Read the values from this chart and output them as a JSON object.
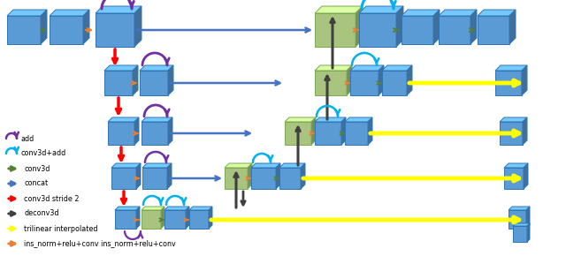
{
  "bg_color": "#ffffff",
  "blue": "#5b9bd5",
  "blue_dark": "#2e75b6",
  "blue_light": "#9dc3e6",
  "green": "#a9c47f",
  "green_dark": "#7aaa52",
  "arrow_blue": "#4472c4",
  "arrow_red": "#ff0000",
  "arrow_green": "#548235",
  "arrow_gray": "#404040",
  "arrow_yellow": "#ffff00",
  "arrow_orange": "#ed7d31",
  "arrow_dashed_blue": "#4472c4",
  "arc_purple": "#7030a0",
  "arc_cyan": "#00b0f0",
  "legend_items": [
    {
      "label": "add",
      "color": "#7030a0",
      "type": "arc"
    },
    {
      "label": "conv3d+add",
      "color": "#00b0f0",
      "type": "arc"
    },
    {
      "label": "conv3d",
      "color": "#548235",
      "type": "arrow"
    },
    {
      "label": "concat",
      "color": "#4472c4",
      "type": "arrow"
    },
    {
      "label": "conv3d stride 2",
      "color": "#ff0000",
      "type": "arrow"
    },
    {
      "label": "deconv3d",
      "color": "#404040",
      "type": "arrow"
    },
    {
      "label": "trilinear interpolated",
      "color": "#ffff00",
      "type": "arrow"
    },
    {
      "label": "ins_norm+relu+conv ins_norm+relu+conv",
      "color": "#ed7d31",
      "type": "arrow"
    }
  ]
}
